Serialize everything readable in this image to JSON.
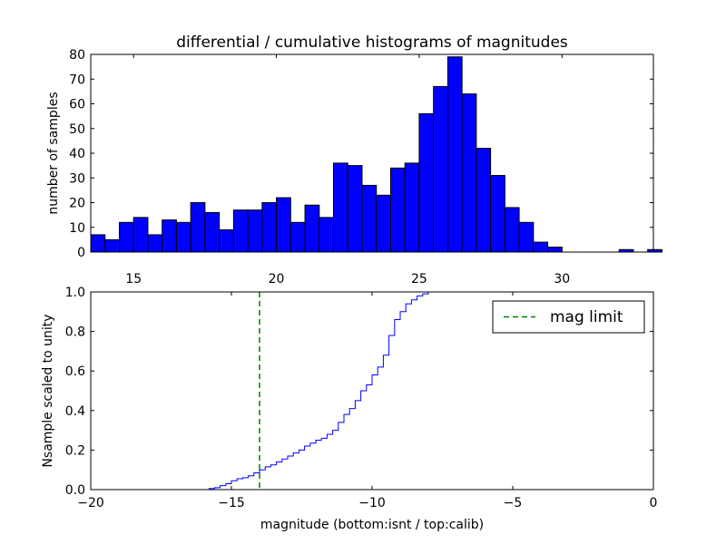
{
  "chart_data": [
    {
      "type": "bar",
      "title": "differential / cumulative histograms of magnitudes",
      "xlabel": "",
      "ylabel": "number of samples",
      "xlim": [
        13.5,
        33.2
      ],
      "ylim": [
        0,
        80
      ],
      "xticks": [
        "15",
        "20",
        "25",
        "30"
      ],
      "yticks": [
        "0",
        "10",
        "20",
        "30",
        "40",
        "50",
        "60",
        "70",
        "80"
      ],
      "bar_color": "#0000ff",
      "bin_start": 13.5,
      "bin_width": 0.5,
      "values": [
        7,
        5,
        12,
        14,
        7,
        13,
        12,
        20,
        16,
        9,
        17,
        17,
        20,
        22,
        12,
        19,
        14,
        36,
        35,
        27,
        23,
        34,
        36,
        56,
        67,
        79,
        64,
        42,
        31,
        18,
        12,
        4,
        2,
        0,
        0,
        0,
        0,
        1,
        0,
        1
      ]
    },
    {
      "type": "line",
      "xlabel": "magnitude (bottom:isnt / top:calib)",
      "ylabel": "Nsample scaled to unity",
      "xlim": [
        -20,
        0
      ],
      "ylim": [
        0,
        1
      ],
      "xticks": [
        "−20",
        "−15",
        "−10",
        "−5",
        "0"
      ],
      "yticks": [
        "0.0",
        "0.2",
        "0.4",
        "0.6",
        "0.8",
        "1.0"
      ],
      "line_color": "#0000ff",
      "limit_color": "#008000",
      "mag_limit": -14.0,
      "legend": {
        "label": "mag limit",
        "loc": "upper-right"
      },
      "step_x": [
        -20.0,
        -15.8,
        -15.6,
        -15.4,
        -15.2,
        -15.0,
        -14.8,
        -14.6,
        -14.4,
        -14.2,
        -14.0,
        -13.8,
        -13.6,
        -13.4,
        -13.2,
        -13.0,
        -12.8,
        -12.6,
        -12.4,
        -12.2,
        -12.0,
        -11.8,
        -11.6,
        -11.4,
        -11.2,
        -11.0,
        -10.8,
        -10.6,
        -10.4,
        -10.2,
        -10.0,
        -9.8,
        -9.6,
        -9.4,
        -9.2,
        -9.0,
        -8.8,
        -8.6,
        -8.4,
        -8.2,
        -8.0,
        -7.8,
        0.0
      ],
      "step_y": [
        0.0,
        0.005,
        0.01,
        0.02,
        0.03,
        0.045,
        0.055,
        0.06,
        0.07,
        0.085,
        0.1,
        0.115,
        0.125,
        0.14,
        0.155,
        0.17,
        0.185,
        0.2,
        0.22,
        0.235,
        0.25,
        0.26,
        0.28,
        0.3,
        0.34,
        0.38,
        0.41,
        0.45,
        0.5,
        0.53,
        0.58,
        0.62,
        0.68,
        0.78,
        0.86,
        0.9,
        0.94,
        0.96,
        0.98,
        0.99,
        1.0,
        1.0,
        1.0
      ]
    }
  ]
}
